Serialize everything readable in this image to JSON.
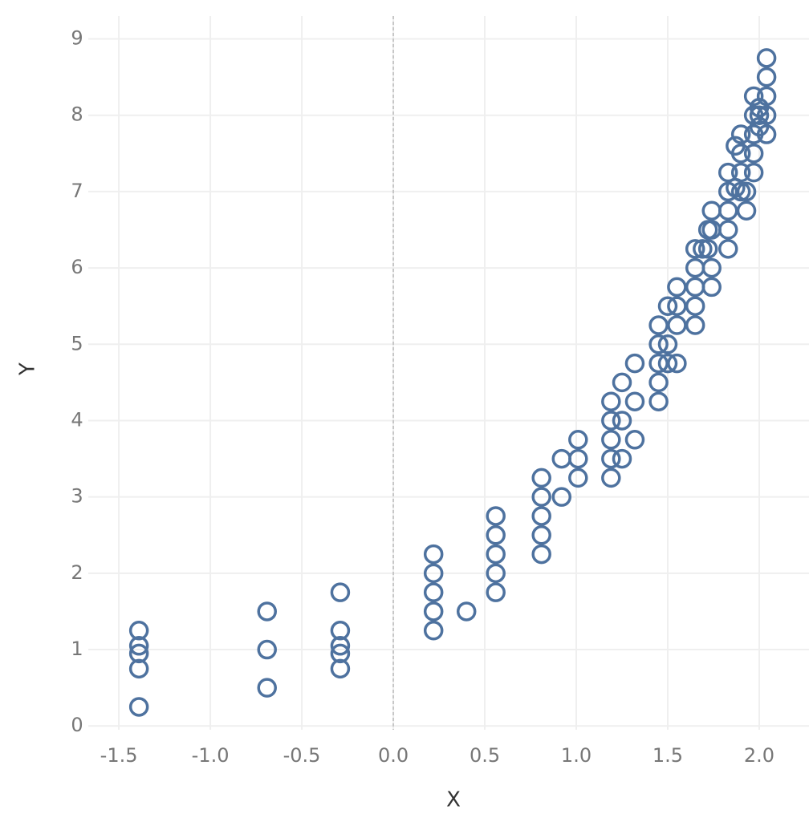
{
  "chart_data": {
    "type": "scatter",
    "x_label": "X",
    "y_label": "Y",
    "xlim": [
      -1.667,
      2.272
    ],
    "ylim": [
      -0.05,
      9.3
    ],
    "xticks": [
      -1.5,
      {
        "value": -1.0,
        "label": "-1.0"
      },
      -0.5,
      {
        "value": 0.0,
        "label": "0.0"
      },
      0.5,
      {
        "value": 1.0,
        "label": "1.0"
      },
      1.5,
      {
        "value": 2.0,
        "label": "2.0"
      }
    ],
    "yticks": [
      0,
      1,
      2,
      3,
      4,
      5,
      6,
      7,
      8,
      9
    ],
    "grid": true,
    "vline": 0,
    "color": "#4e729f",
    "x": [
      -1.39,
      -1.39,
      -1.39,
      -1.39,
      -1.39,
      -0.69,
      -0.69,
      -0.69,
      -0.29,
      -0.29,
      -0.29,
      -0.29,
      -0.29,
      0.22,
      0.22,
      0.22,
      0.22,
      0.22,
      0.4,
      0.56,
      0.56,
      0.56,
      0.56,
      0.56,
      0.81,
      0.81,
      0.81,
      0.81,
      0.81,
      0.92,
      0.92,
      1.01,
      1.01,
      1.01,
      1.19,
      1.19,
      1.19,
      1.19,
      1.19,
      1.25,
      1.25,
      1.25,
      1.32,
      1.32,
      1.32,
      1.45,
      1.45,
      1.45,
      1.45,
      1.45,
      1.5,
      1.5,
      1.5,
      1.55,
      1.55,
      1.55,
      1.55,
      1.65,
      1.65,
      1.65,
      1.65,
      1.65,
      1.69,
      1.72,
      1.72,
      1.74,
      1.74,
      1.74,
      1.74,
      1.83,
      1.83,
      1.83,
      1.83,
      1.83,
      1.87,
      1.87,
      1.9,
      1.9,
      1.9,
      1.9,
      1.93,
      1.93,
      1.97,
      1.97,
      1.97,
      1.97,
      1.97,
      2.0,
      2.0,
      2.0,
      2.04,
      2.04,
      2.04,
      2.04,
      2.04
    ],
    "values": [
      1.25,
      1.05,
      0.95,
      0.75,
      0.25,
      1.5,
      1.0,
      0.5,
      1.75,
      1.25,
      1.05,
      0.95,
      0.75,
      2.25,
      2.0,
      1.75,
      1.5,
      1.25,
      1.5,
      2.75,
      2.5,
      2.25,
      2.0,
      1.75,
      3.25,
      3.0,
      2.75,
      2.5,
      2.25,
      3.5,
      3.0,
      3.75,
      3.5,
      3.25,
      4.25,
      4.0,
      3.75,
      3.5,
      3.25,
      4.5,
      4.0,
      3.5,
      4.75,
      4.25,
      3.75,
      5.25,
      5.0,
      4.75,
      4.5,
      4.25,
      5.5,
      5.0,
      4.75,
      5.75,
      5.5,
      5.25,
      4.75,
      6.25,
      6.0,
      5.75,
      5.5,
      5.25,
      6.25,
      6.5,
      6.25,
      6.75,
      6.5,
      6.0,
      5.75,
      7.25,
      7.0,
      6.75,
      6.5,
      6.25,
      7.6,
      7.05,
      7.75,
      7.5,
      7.25,
      7.0,
      7.0,
      6.75,
      8.25,
      8.0,
      7.75,
      7.5,
      7.25,
      8.1,
      8.0,
      7.85,
      8.75,
      8.5,
      8.25,
      8.0,
      7.75
    ]
  }
}
